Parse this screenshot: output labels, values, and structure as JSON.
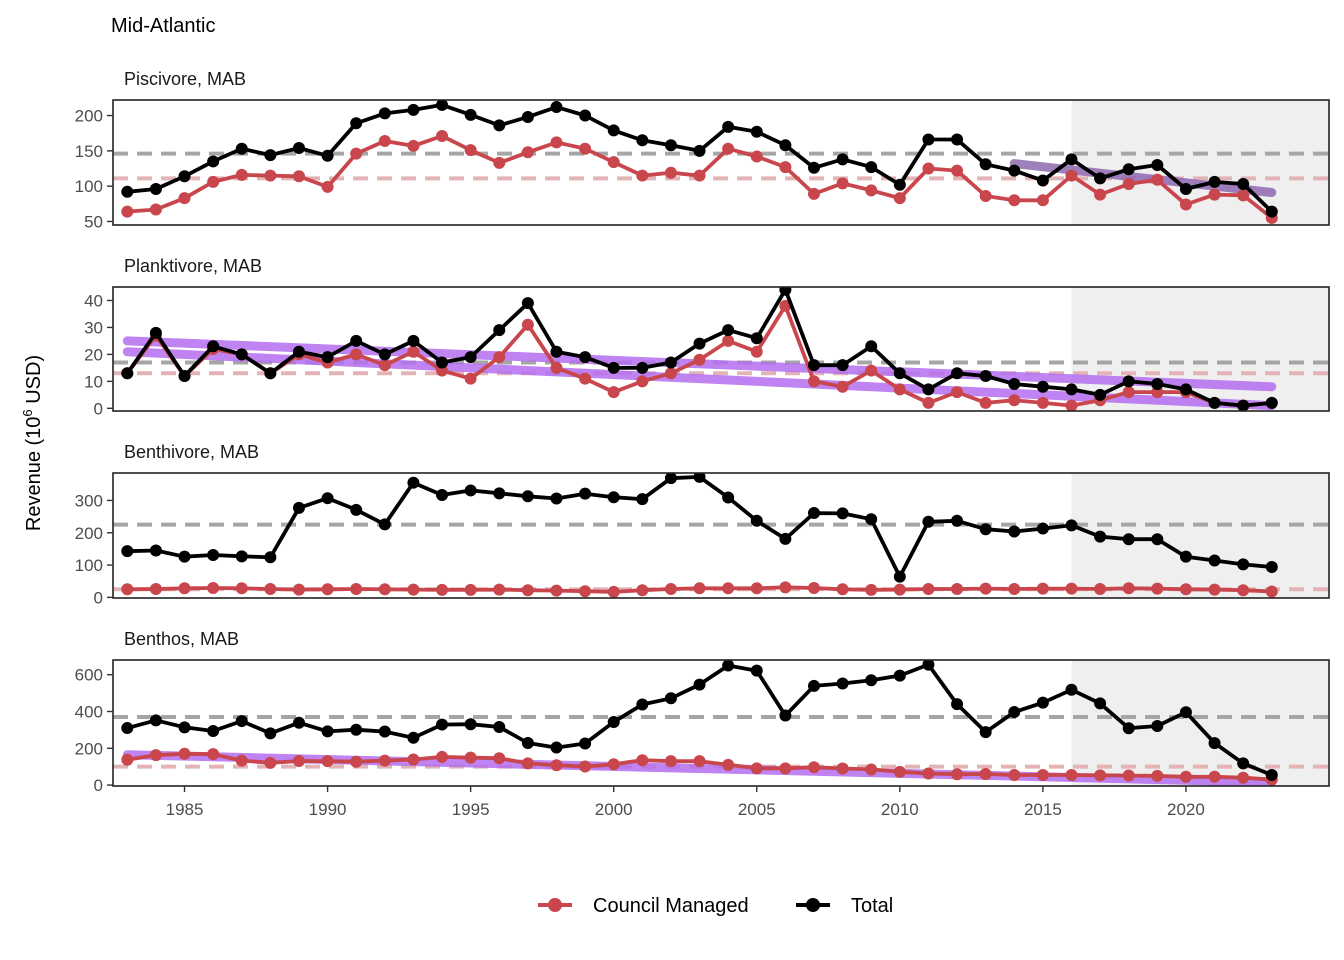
{
  "title": "Mid-Atlantic",
  "ylabel_main": "Revenue (10",
  "ylabel_sup": "6",
  "ylabel_tail": " USD)",
  "legend": [
    {
      "label": "Council Managed",
      "color": "#c9464d"
    },
    {
      "label": "Total",
      "color": "#000000"
    }
  ],
  "colors": {
    "council": "#c9464d",
    "total": "#000000",
    "mean_total": "#a6a6a6",
    "mean_council": "#e3b4b6",
    "trend_purple": "#b56ef0",
    "trend_darkpurple": "#8e6ab0",
    "shade": "#efefef"
  },
  "chart_data": {
    "type": "line",
    "xlim": [
      1982.5,
      2025
    ],
    "x_ticks": [
      1985,
      1990,
      1995,
      2000,
      2005,
      2010,
      2015,
      2020
    ],
    "shade_from": 2016,
    "x": [
      1983,
      1984,
      1985,
      1986,
      1987,
      1988,
      1989,
      1990,
      1991,
      1992,
      1993,
      1994,
      1995,
      1996,
      1997,
      1998,
      1999,
      2000,
      2001,
      2002,
      2003,
      2004,
      2005,
      2006,
      2007,
      2008,
      2009,
      2010,
      2011,
      2012,
      2013,
      2014,
      2015,
      2016,
      2017,
      2018,
      2019,
      2020,
      2021,
      2022,
      2023
    ],
    "panels": [
      {
        "title": "Piscivore, MAB",
        "ylim": [
          45,
          222
        ],
        "yticks": [
          50,
          100,
          150,
          200
        ],
        "mean_total": 146,
        "mean_council": 111,
        "total": [
          92,
          96,
          114,
          135,
          153,
          144,
          154,
          143,
          189,
          203,
          208,
          215,
          201,
          186,
          198,
          212,
          200,
          179,
          165,
          158,
          150,
          184,
          177,
          158,
          126,
          138,
          127,
          102,
          166,
          166,
          131,
          122,
          108,
          138,
          111,
          124,
          130,
          96,
          106,
          103,
          64
        ],
        "council": [
          64,
          67,
          83,
          106,
          116,
          115,
          114,
          99,
          146,
          164,
          157,
          171,
          151,
          133,
          148,
          162,
          153,
          134,
          115,
          119,
          115,
          153,
          142,
          127,
          89,
          104,
          94,
          83,
          125,
          122,
          86,
          80,
          80,
          115,
          88,
          103,
          109,
          74,
          88,
          87,
          55
        ],
        "trends": [
          {
            "color": "#8e6ab0",
            "x": [
              2014,
              2023
            ],
            "y": [
              132,
              91
            ]
          }
        ]
      },
      {
        "title": "Planktivore, MAB",
        "ylim": [
          -1,
          45
        ],
        "yticks": [
          0,
          10,
          20,
          30,
          40
        ],
        "mean_total": 17,
        "mean_council": 13,
        "total": [
          13,
          28,
          12,
          23,
          20,
          13,
          21,
          19,
          25,
          20,
          25,
          17,
          19,
          29,
          39,
          21,
          19,
          15,
          15,
          17,
          24,
          29,
          26,
          44,
          16,
          16,
          23,
          13,
          7,
          13,
          12,
          9,
          8,
          7,
          5,
          10,
          9,
          7,
          2,
          1,
          2
        ],
        "council": [
          13,
          27,
          12,
          22,
          20,
          13,
          20,
          17,
          20,
          16,
          21,
          14,
          11,
          19,
          31,
          15,
          11,
          6,
          10,
          13,
          18,
          25,
          21,
          38,
          10,
          8,
          14,
          7,
          2,
          6,
          2,
          3,
          2,
          1,
          3,
          6,
          6,
          6,
          2,
          1,
          2
        ],
        "trends": [
          {
            "color": "#b56ef0",
            "x": [
              1983,
              2023
            ],
            "y": [
              25,
              8
            ]
          },
          {
            "color": "#b56ef0",
            "x": [
              1983,
              2023
            ],
            "y": [
              21,
              1
            ]
          }
        ]
      },
      {
        "title": "Benthivore, MAB",
        "ylim": [
          -2,
          385
        ],
        "yticks": [
          0,
          100,
          200,
          300
        ],
        "mean_total": 225,
        "mean_council": 25,
        "total": [
          143,
          145,
          126,
          131,
          127,
          124,
          277,
          307,
          271,
          226,
          355,
          317,
          331,
          322,
          313,
          306,
          321,
          310,
          304,
          369,
          373,
          309,
          237,
          181,
          261,
          260,
          242,
          64,
          234,
          237,
          211,
          204,
          213,
          223,
          188,
          180,
          180,
          126,
          114,
          102,
          94
        ],
        "council": [
          25,
          26,
          28,
          29,
          28,
          26,
          24,
          25,
          26,
          25,
          24,
          23,
          23,
          24,
          22,
          21,
          19,
          17,
          22,
          26,
          28,
          28,
          28,
          31,
          29,
          25,
          23,
          24,
          26,
          26,
          27,
          26,
          27,
          27,
          26,
          28,
          27,
          25,
          24,
          22,
          18
        ],
        "trends": []
      },
      {
        "title": "Benthos, MAB",
        "ylim": [
          -5,
          680
        ],
        "yticks": [
          0,
          200,
          400,
          600
        ],
        "mean_total": 370,
        "mean_council": 100,
        "total": [
          310,
          352,
          314,
          294,
          348,
          281,
          339,
          292,
          301,
          291,
          257,
          329,
          331,
          316,
          229,
          204,
          226,
          343,
          438,
          472,
          546,
          650,
          622,
          378,
          539,
          552,
          570,
          595,
          655,
          440,
          288,
          397,
          448,
          518,
          444,
          309,
          321,
          396,
          228,
          118,
          55
        ],
        "council": [
          138,
          163,
          170,
          168,
          133,
          121,
          131,
          130,
          127,
          133,
          139,
          153,
          149,
          146,
          118,
          108,
          101,
          113,
          135,
          130,
          130,
          110,
          91,
          91,
          97,
          90,
          85,
          72,
          63,
          59,
          60,
          55,
          55,
          55,
          53,
          52,
          50,
          45,
          45,
          40,
          30
        ],
        "trends": [
          {
            "color": "#b56ef0",
            "x": [
              1983,
              2023
            ],
            "y": [
              165,
              15
            ]
          }
        ]
      }
    ]
  }
}
